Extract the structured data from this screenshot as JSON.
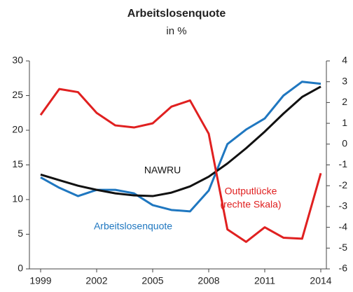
{
  "chart_data": {
    "type": "line",
    "title": "Arbeitslosenquote",
    "subtitle": "in %",
    "x": [
      1999,
      2000,
      2001,
      2002,
      2003,
      2004,
      2005,
      2006,
      2007,
      2008,
      2009,
      2010,
      2011,
      2012,
      2013,
      2014
    ],
    "xlim": [
      1998.4,
      2014.3
    ],
    "xticks": [
      1999,
      2002,
      2005,
      2008,
      2011,
      2014
    ],
    "ylim": [
      0,
      30
    ],
    "yticks": [
      0,
      5,
      10,
      15,
      20,
      25,
      30
    ],
    "y2lim": [
      -6,
      4
    ],
    "y2ticks": [
      -6,
      -5,
      -4,
      -3,
      -2,
      -1,
      0,
      1,
      2,
      3,
      4
    ],
    "grid": false,
    "series": [
      {
        "name": "Arbeitslosenquote",
        "color": "#1f77c0",
        "values": [
          13.2,
          11.7,
          10.5,
          11.4,
          11.4,
          10.9,
          9.2,
          8.5,
          8.3,
          11.3,
          18.0,
          20.1,
          21.7,
          25.0,
          27.0,
          26.7
        ]
      },
      {
        "name": "NAWRU",
        "color": "#111111",
        "values": [
          13.6,
          12.8,
          12.0,
          11.4,
          10.9,
          10.6,
          10.5,
          11.0,
          11.9,
          13.3,
          15.2,
          17.4,
          19.8,
          22.4,
          24.8,
          26.3
        ]
      },
      {
        "name": "Outputlücke",
        "color": "#e02020",
        "axis": "y2",
        "values": [
          1.4,
          2.65,
          2.5,
          1.5,
          0.9,
          0.8,
          1.0,
          1.8,
          2.1,
          0.5,
          -4.1,
          -4.7,
          -4.0,
          -4.5,
          -4.55,
          -1.4
        ]
      }
    ],
    "annotations": [
      "Arbeitslosenquote",
      "NAWRU",
      "Outputlücke",
      "(rechte Skala)"
    ]
  }
}
